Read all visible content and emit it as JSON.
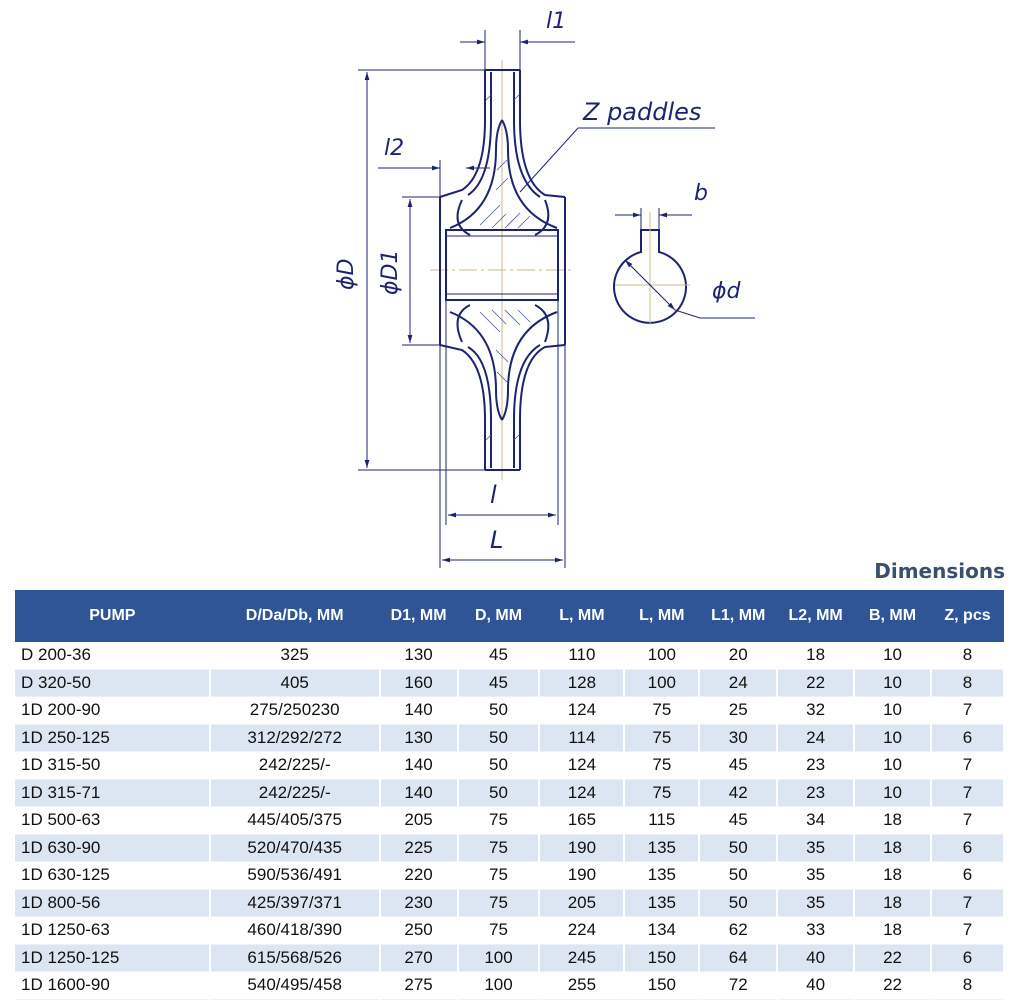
{
  "drawing": {
    "labels": {
      "l1": "l1",
      "l2": "l2",
      "z_paddles": "Z paddles",
      "b": "b",
      "phi_d": "ϕd",
      "phi_D": "ϕD",
      "phi_D1": "ϕD1",
      "l": "l",
      "L": "L"
    },
    "line_color": "#1c2470"
  },
  "table": {
    "title": "Dimensions",
    "header_color": "#2f5597",
    "alt_row_color": "#dce6f2",
    "columns": [
      "PUMP",
      "D/Da/Db, MM",
      "D1, MM",
      "D, MM",
      "L, MM",
      "L, MM",
      "L1, MM",
      "L2, MM",
      "B, MM",
      "Z, pcs"
    ],
    "rows": [
      [
        "D 200-36",
        "325",
        "130",
        "45",
        "110",
        "100",
        "20",
        "18",
        "10",
        "8"
      ],
      [
        "D 320-50",
        "405",
        "160",
        "45",
        "128",
        "100",
        "24",
        "22",
        "10",
        "8"
      ],
      [
        "1D 200-90",
        "275/250230",
        "140",
        "50",
        "124",
        "75",
        "25",
        "32",
        "10",
        "7"
      ],
      [
        "1D 250-125",
        "312/292/272",
        "130",
        "50",
        "114",
        "75",
        "30",
        "24",
        "10",
        "6"
      ],
      [
        "1D 315-50",
        "242/225/-",
        "140",
        "50",
        "124",
        "75",
        "45",
        "23",
        "10",
        "7"
      ],
      [
        "1D 315-71",
        "242/225/-",
        "140",
        "50",
        "124",
        "75",
        "42",
        "23",
        "10",
        "7"
      ],
      [
        "1D 500-63",
        "445/405/375",
        "205",
        "75",
        "165",
        "115",
        "45",
        "34",
        "18",
        "7"
      ],
      [
        "1D 630-90",
        "520/470/435",
        "225",
        "75",
        "190",
        "135",
        "50",
        "35",
        "18",
        "6"
      ],
      [
        "1D 630-125",
        "590/536/491",
        "220",
        "75",
        "190",
        "135",
        "50",
        "35",
        "18",
        "6"
      ],
      [
        "1D 800-56",
        "425/397/371",
        "230",
        "75",
        "205",
        "135",
        "50",
        "35",
        "18",
        "7"
      ],
      [
        "1D 1250-63",
        "460/418/390",
        "250",
        "75",
        "224",
        "134",
        "62",
        "33",
        "18",
        "7"
      ],
      [
        "1D 1250-125",
        "615/568/526",
        "270",
        "100",
        "245",
        "150",
        "64",
        "40",
        "22",
        "6"
      ],
      [
        "1D 1600-90",
        "540/495/458",
        "275",
        "100",
        "255",
        "150",
        "72",
        "40",
        "22",
        "8"
      ]
    ]
  }
}
